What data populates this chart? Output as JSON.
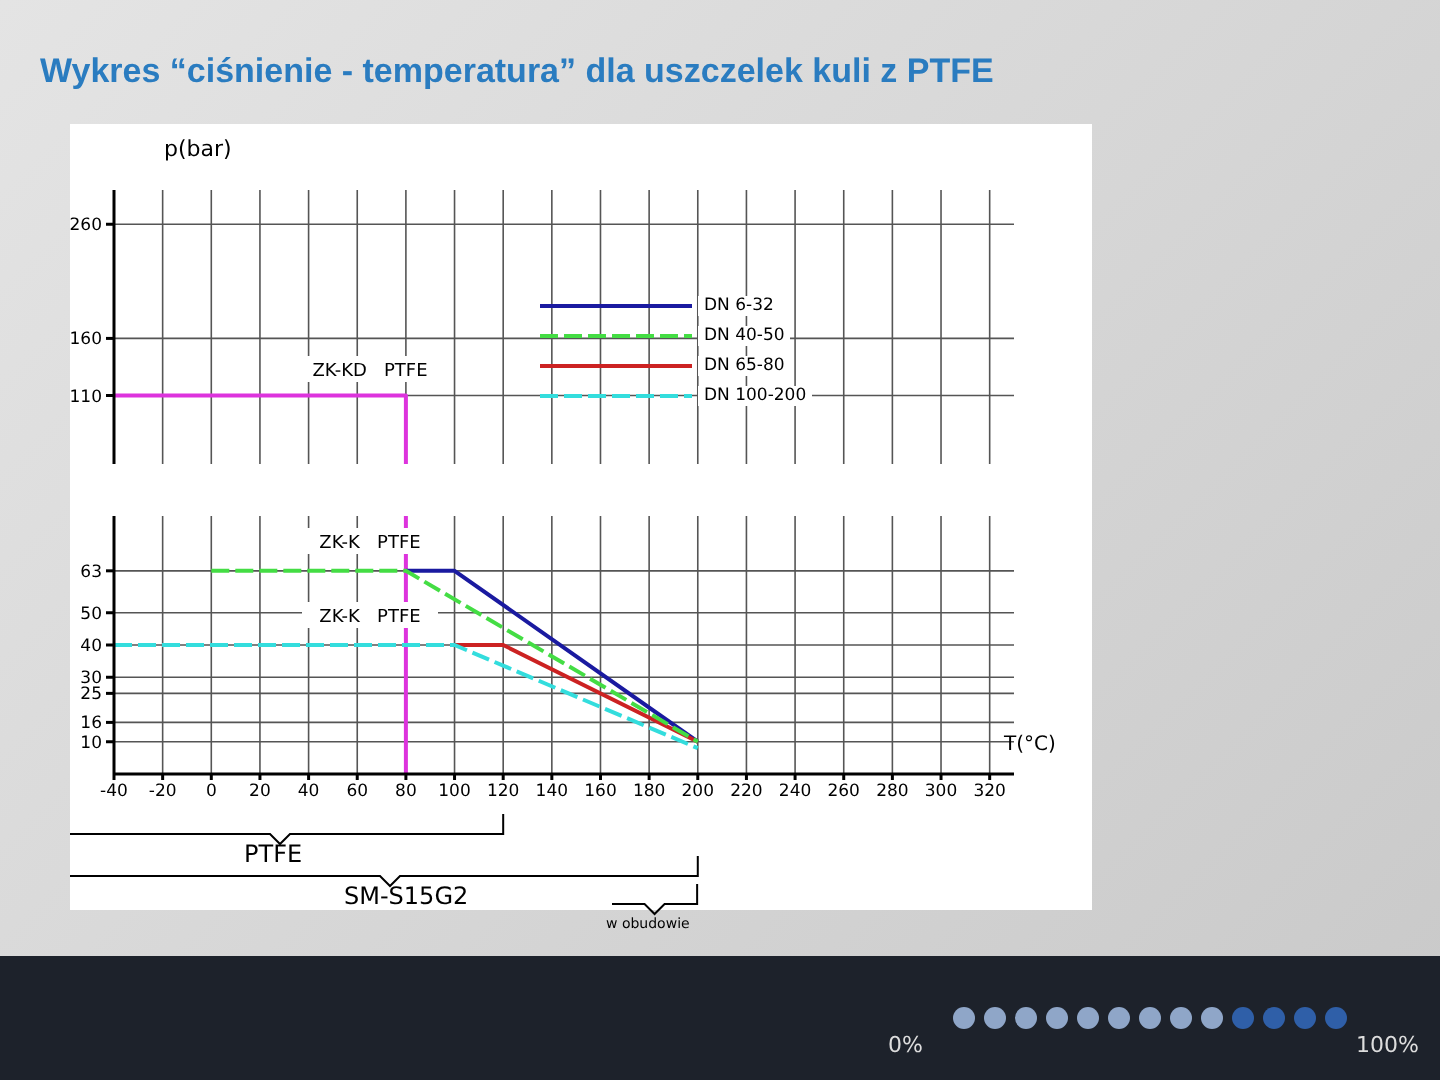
{
  "chart_data": [
    {
      "type": "line",
      "title": "Wykres “ciśnienie - temperatura” dla uszczelek kuli z PTFE",
      "ylabel": "p(bar)",
      "xlim": [
        -40,
        330
      ],
      "xticks": [
        -40,
        -20,
        0,
        20,
        40,
        60,
        80,
        100,
        120,
        140,
        160,
        180,
        200,
        220,
        240,
        260,
        280,
        300,
        320
      ],
      "ylim": [
        50,
        290
      ],
      "yticks": [
        110,
        160,
        260
      ],
      "grid": true,
      "tick_labels": "y",
      "series": [
        {
          "color": "#dd33dd",
          "x": [
            -40,
            80,
            80
          ],
          "values": [
            110,
            110,
            50
          ]
        }
      ],
      "annotations": [
        "ZK-KD   PTFE"
      ]
    },
    {
      "type": "line",
      "xlabel": "T(°C)",
      "xlim": [
        -40,
        330
      ],
      "xticks": [
        -40,
        -20,
        0,
        20,
        40,
        60,
        80,
        100,
        120,
        140,
        160,
        180,
        200,
        220,
        240,
        260,
        280,
        300,
        320
      ],
      "ylim": [
        0,
        80
      ],
      "yticks": [
        10,
        16,
        25,
        30,
        40,
        50,
        63
      ],
      "grid": true,
      "legend": "top right",
      "series": [
        {
          "color": "#dd33dd",
          "x": [
            80,
            80
          ],
          "values": [
            80,
            0
          ]
        },
        {
          "name": "DN 6-32",
          "color": "#1a1aa0",
          "x": [
            80,
            100,
            200
          ],
          "values": [
            63,
            63,
            10
          ]
        },
        {
          "name": "DN 40-50",
          "color": "#44dd44",
          "line_style": "dashed",
          "x": [
            0,
            80,
            200
          ],
          "values": [
            63,
            63,
            10
          ]
        },
        {
          "name": "DN 65-80",
          "color": "#cc2222",
          "x": [
            100,
            120,
            200
          ],
          "values": [
            40,
            40,
            10
          ]
        },
        {
          "name": "DN 100-200",
          "color": "#33dddd",
          "line_style": "dashed",
          "x": [
            -40,
            100,
            200
          ],
          "values": [
            40,
            40,
            8
          ]
        }
      ],
      "annotations": [
        "ZK-K   PTFE",
        "ZK-K   PTFE",
        "PTFE",
        "SM-S15G2",
        "w obudowie",
        "0%",
        "100%"
      ]
    }
  ]
}
